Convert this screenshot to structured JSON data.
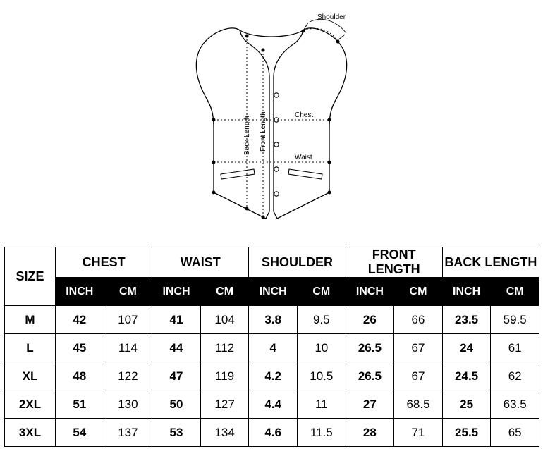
{
  "diagram": {
    "labels": {
      "shoulder": "Shoulder",
      "chest": "Chest",
      "waist": "Waist",
      "front_length": "Front Length",
      "back_length": "Back Length"
    },
    "stroke": "#000000",
    "stroke_width": 1.3,
    "dash": "2,3",
    "dot_fill": "#000000"
  },
  "table": {
    "size_header": "SIZE",
    "groups": [
      "CHEST",
      "WAIST",
      "SHOULDER",
      "FRONT LENGTH",
      "BACK LENGTH"
    ],
    "units": [
      "INCH",
      "CM"
    ],
    "rows": [
      {
        "size": "M",
        "chest_in": "42",
        "chest_cm": "107",
        "waist_in": "41",
        "waist_cm": "104",
        "shoulder_in": "3.8",
        "shoulder_cm": "9.5",
        "fl_in": "26",
        "fl_cm": "66",
        "bl_in": "23.5",
        "bl_cm": "59.5"
      },
      {
        "size": "L",
        "chest_in": "45",
        "chest_cm": "114",
        "waist_in": "44",
        "waist_cm": "112",
        "shoulder_in": "4",
        "shoulder_cm": "10",
        "fl_in": "26.5",
        "fl_cm": "67",
        "bl_in": "24",
        "bl_cm": "61"
      },
      {
        "size": "XL",
        "chest_in": "48",
        "chest_cm": "122",
        "waist_in": "47",
        "waist_cm": "119",
        "shoulder_in": "4.2",
        "shoulder_cm": "10.5",
        "fl_in": "26.5",
        "fl_cm": "67",
        "bl_in": "24.5",
        "bl_cm": "62"
      },
      {
        "size": "2XL",
        "chest_in": "51",
        "chest_cm": "130",
        "waist_in": "50",
        "waist_cm": "127",
        "shoulder_in": "4.4",
        "shoulder_cm": "11",
        "fl_in": "27",
        "fl_cm": "68.5",
        "bl_in": "25",
        "bl_cm": "63.5"
      },
      {
        "size": "3XL",
        "chest_in": "54",
        "chest_cm": "137",
        "waist_in": "53",
        "waist_cm": "134",
        "shoulder_in": "4.6",
        "shoulder_cm": "11.5",
        "fl_in": "28",
        "fl_cm": "71",
        "bl_in": "25.5",
        "bl_cm": "65"
      }
    ],
    "header_bg": "#000000",
    "header_fg": "#ffffff",
    "border_color": "#000000",
    "font_family": "Arial",
    "cell_fontsize": 17
  }
}
